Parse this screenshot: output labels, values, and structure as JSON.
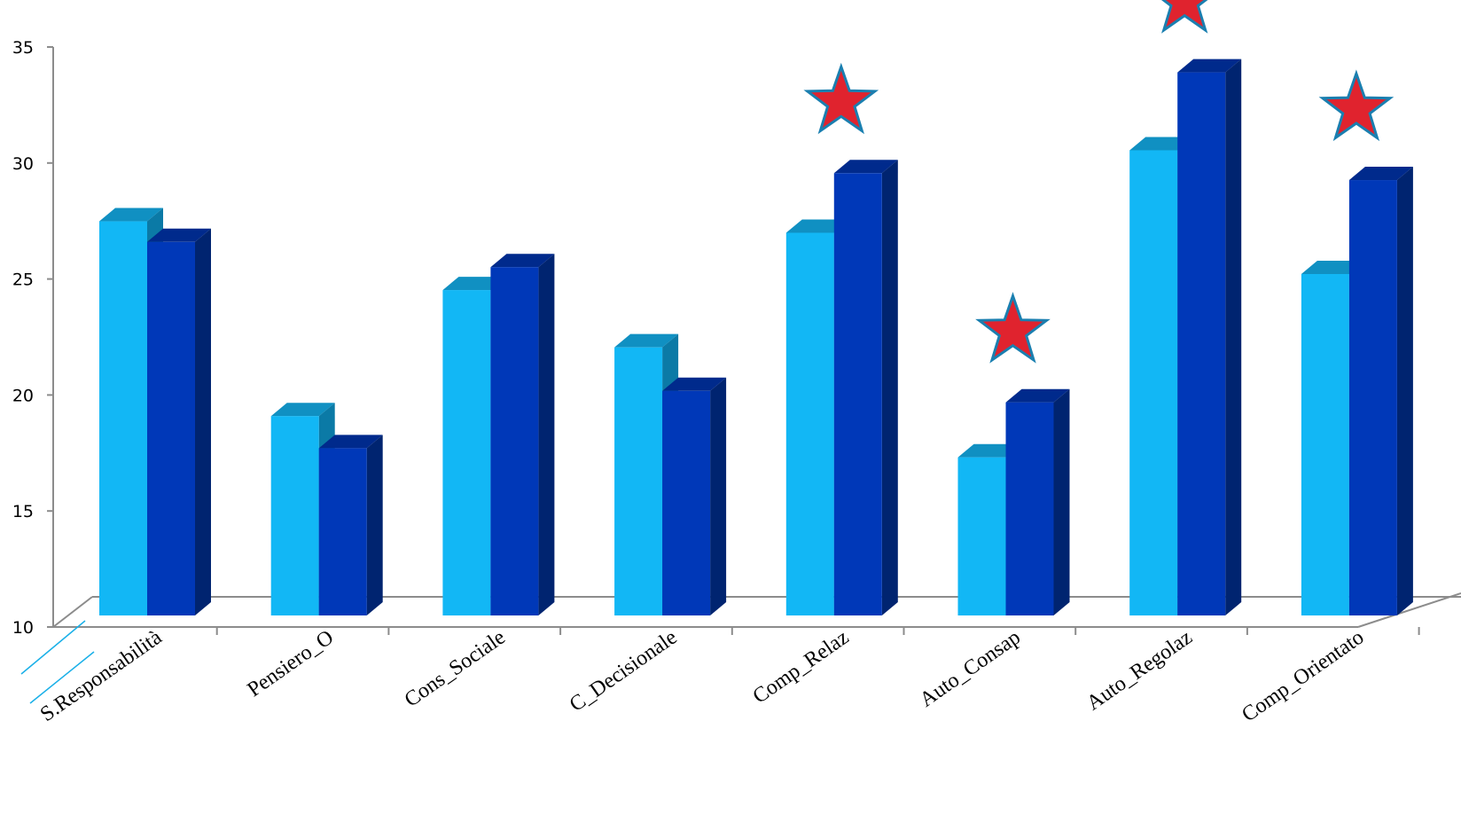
{
  "chart_data": {
    "type": "bar",
    "title": "",
    "xlabel": "",
    "ylabel": "",
    "ylim": [
      10,
      35
    ],
    "yticks": [
      10,
      15,
      20,
      25,
      30,
      35
    ],
    "grid": false,
    "legend": "none",
    "categories": [
      "S.Responsabilità",
      "Pensiero_O",
      "Cons_Sociale",
      "C_Decisionale",
      "Comp_Relaz",
      "Auto_Consap",
      "Auto_Regolaz",
      "Comp_Orientato"
    ],
    "series": [
      {
        "values": [
          27.2,
          18.7,
          24.2,
          21.7,
          26.7,
          16.9,
          30.3,
          24.9
        ]
      },
      {
        "values": [
          26.3,
          17.3,
          25.2,
          19.8,
          29.3,
          19.3,
          33.7,
          29.0
        ]
      }
    ],
    "significance_markers": [
      false,
      false,
      false,
      false,
      true,
      true,
      true,
      true
    ],
    "colors": {
      "series1_front": "#12b7f5",
      "series1_top": "#1090c2",
      "series1_side": "#0b7aa6",
      "series2_front": "#0038b8",
      "series2_top": "#002a8c",
      "series2_side": "#002470",
      "star_fill": "#e0232e",
      "star_stroke": "#1a7fb0",
      "axis": "#8c8c8c",
      "break_mark": "#1ab0e8"
    }
  }
}
